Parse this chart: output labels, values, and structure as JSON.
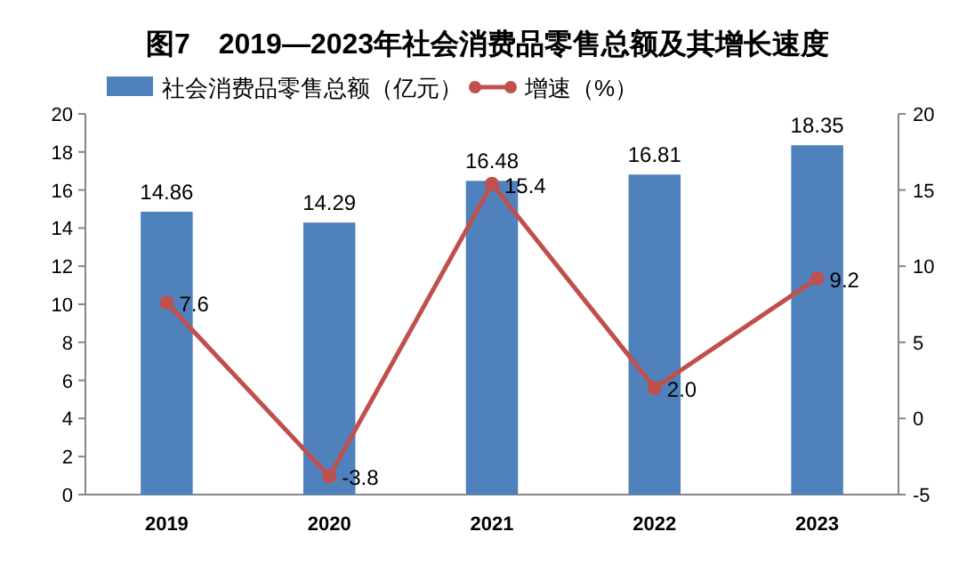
{
  "chart_data": {
    "type": "bar",
    "title": "图7　2019—2023年社会消费品零售总额及其增长速度",
    "categories": [
      "2019",
      "2020",
      "2021",
      "2022",
      "2023"
    ],
    "series": [
      {
        "name": "社会消费品零售总额（亿元）",
        "color": "#4f81bd",
        "values": [
          14.86,
          14.29,
          16.48,
          16.81,
          18.35
        ],
        "value_labels": [
          "14.86",
          "14.29",
          "16.48",
          "16.81",
          "18.35"
        ]
      },
      {
        "name": "增速（%）",
        "type": "line",
        "axis": "y2",
        "color": "#c0504d",
        "marker": "circle",
        "values": [
          7.6,
          -3.8,
          15.4,
          2.0,
          9.2
        ],
        "value_labels": [
          "7.6",
          "-3.8",
          "15.4",
          "2.0",
          "9.2"
        ]
      }
    ],
    "ylim": [
      0,
      20
    ],
    "yticks": [
      0,
      2,
      4,
      6,
      8,
      10,
      12,
      14,
      16,
      18,
      20
    ],
    "y2lim": [
      -5,
      20
    ],
    "y2ticks": [
      -5,
      0,
      5,
      10,
      15,
      20
    ],
    "legend": "top",
    "grid": false
  }
}
